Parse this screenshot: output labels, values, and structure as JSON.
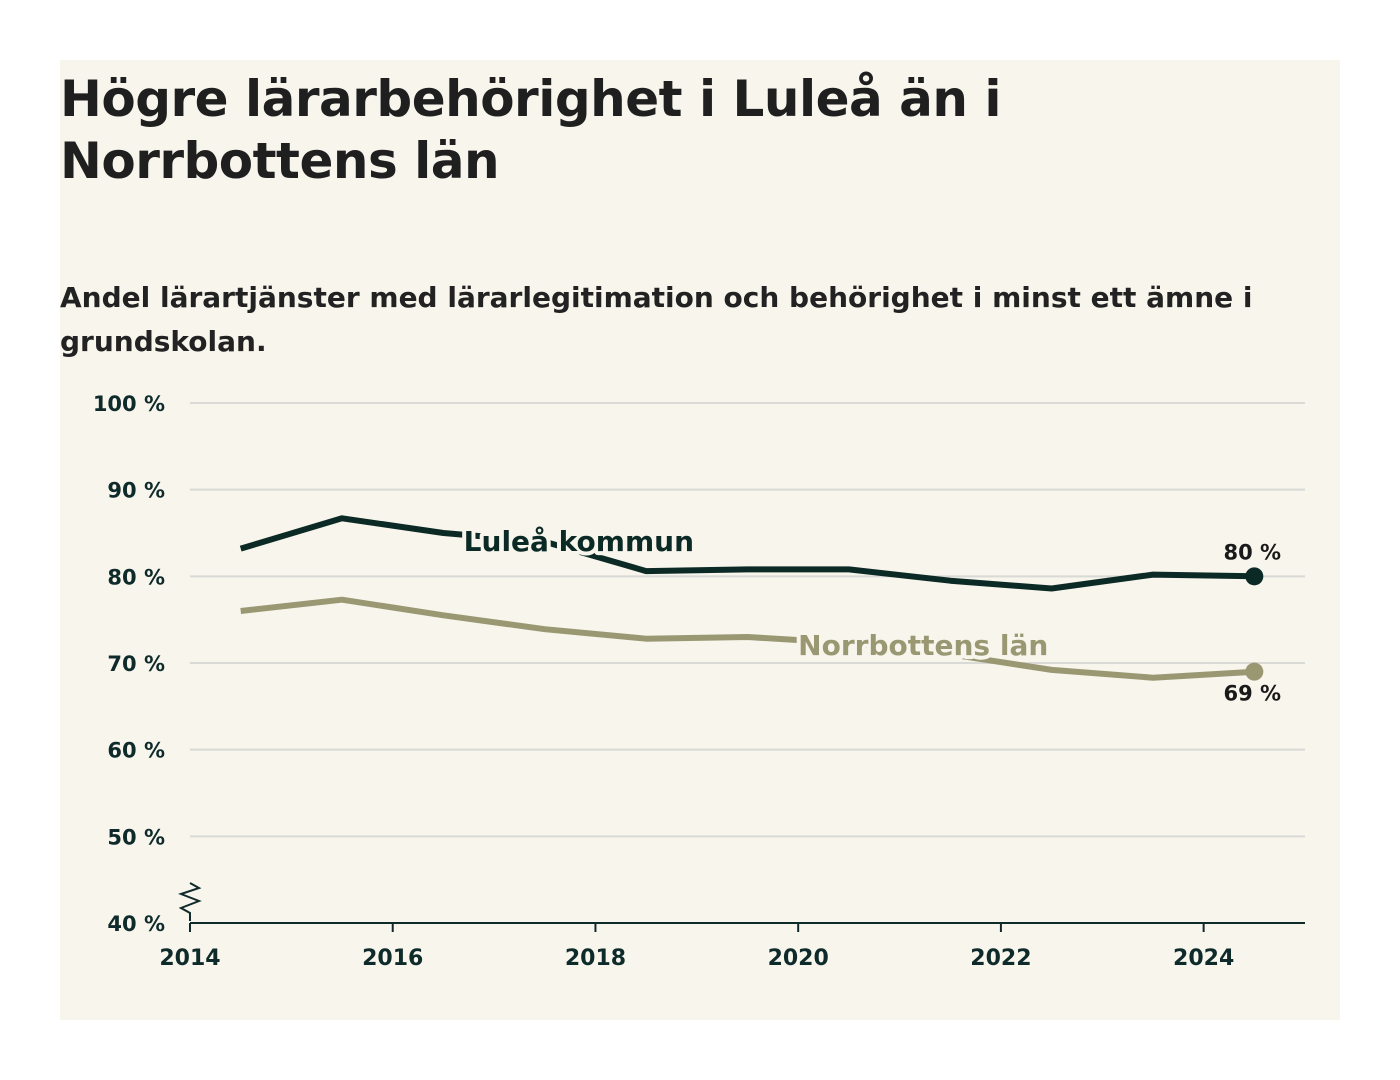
{
  "title": "Högre lärarbehörighet i Luleå än i Norrbottens län",
  "subtitle": "Andel lärartjänster med lärarlegitimation och behörighet i minst ett ämne i grundskolan.",
  "colors": {
    "background": "#f7f5ec",
    "lulea": "#0c2a25",
    "norrbotten": "#9a9872",
    "grid": "#d9d9d6",
    "axis": "#0f2a2a"
  },
  "chart_data": {
    "type": "line",
    "ylim": [
      40,
      100
    ],
    "xlim": [
      2014,
      2025
    ],
    "y_ticks": [
      {
        "value": 100,
        "label": "100 %"
      },
      {
        "value": 90,
        "label": "90 %"
      },
      {
        "value": 80,
        "label": "80 %"
      },
      {
        "value": 70,
        "label": "70 %"
      },
      {
        "value": 60,
        "label": "60 %"
      },
      {
        "value": 50,
        "label": "50 %"
      },
      {
        "value": 40,
        "label": "40 %"
      }
    ],
    "x_ticks": [
      {
        "value": 2014,
        "label": "2014"
      },
      {
        "value": 2016,
        "label": "2016"
      },
      {
        "value": 2018,
        "label": "2018"
      },
      {
        "value": 2020,
        "label": "2020"
      },
      {
        "value": 2022,
        "label": "2022"
      },
      {
        "value": 2024,
        "label": "2024"
      }
    ],
    "grid": true,
    "axis_break": true,
    "series": [
      {
        "name": "Luleå kommun",
        "color": "#0c2a25",
        "x": [
          2014.5,
          2015.5,
          2016.5,
          2017.5,
          2018.5,
          2019.5,
          2020.5,
          2021.5,
          2022.5,
          2023.5,
          2024.5
        ],
        "y": [
          83.2,
          86.7,
          85.0,
          84.0,
          80.6,
          80.8,
          80.8,
          79.5,
          78.6,
          80.2,
          80.0
        ],
        "end_label": "80 %"
      },
      {
        "name": "Norrbottens län",
        "color": "#9a9872",
        "x": [
          2014.5,
          2015.5,
          2016.5,
          2017.5,
          2018.5,
          2019.5,
          2020.5,
          2021.5,
          2022.5,
          2023.5,
          2024.5
        ],
        "y": [
          76.0,
          77.3,
          75.5,
          73.9,
          72.8,
          73.0,
          72.3,
          71.0,
          69.2,
          68.3,
          69.0
        ],
        "end_label": "69 %"
      }
    ]
  }
}
